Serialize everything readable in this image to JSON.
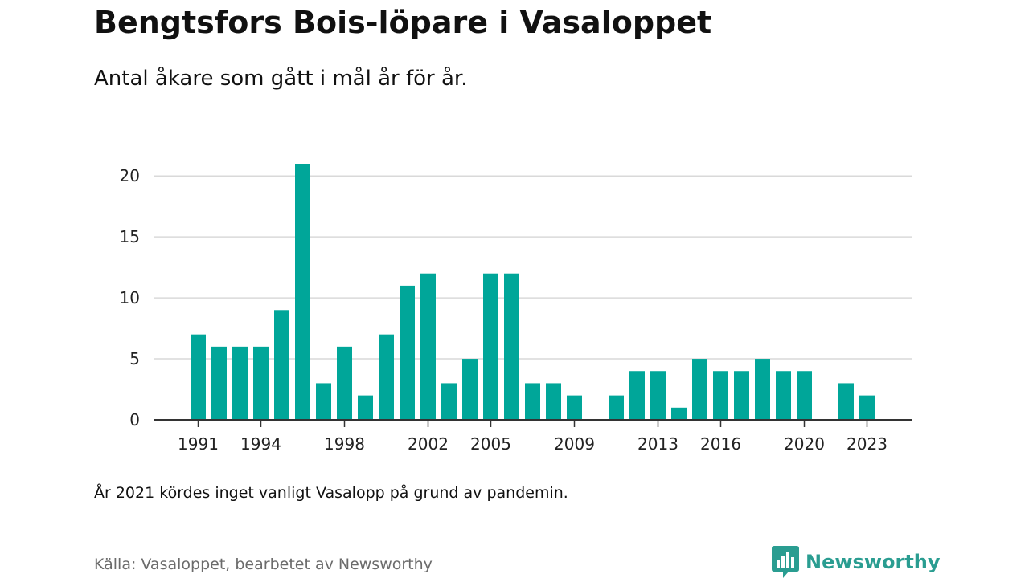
{
  "header": {
    "title": "Bengtsfors Bois-löpare i Vasaloppet",
    "subtitle": "Antal åkare som gått i mål år för år."
  },
  "footer": {
    "note": "År 2021 kördes inget vanligt Vasalopp på grund av pandemin.",
    "source": "Källa: Vasaloppet, bearbetet av Newsworthy",
    "brand": "Newsworthy"
  },
  "colors": {
    "bar": "#00a699",
    "brand": "#2a9d91",
    "grid": "#d9d9d9",
    "axis": "#333333"
  },
  "icons": {
    "brand_logo": "newsworthy-logo-icon"
  },
  "chart_data": {
    "type": "bar",
    "categories": [
      1991,
      1992,
      1993,
      1994,
      1995,
      1996,
      1997,
      1998,
      1999,
      2000,
      2001,
      2002,
      2003,
      2004,
      2005,
      2006,
      2007,
      2008,
      2009,
      2010,
      2011,
      2012,
      2013,
      2014,
      2015,
      2016,
      2017,
      2018,
      2019,
      2020,
      2021,
      2022,
      2023
    ],
    "values": [
      7,
      6,
      6,
      6,
      9,
      21,
      3,
      6,
      2,
      7,
      11,
      12,
      3,
      5,
      12,
      12,
      3,
      3,
      2,
      0,
      2,
      4,
      4,
      1,
      5,
      4,
      4,
      5,
      4,
      4,
      0,
      3,
      2
    ],
    "x_tick_labels": [
      "1991",
      "1994",
      "1998",
      "2002",
      "2005",
      "2009",
      "2013",
      "2016",
      "2020",
      "2023"
    ],
    "y_tick_labels": [
      "0",
      "5",
      "10",
      "15",
      "20"
    ],
    "ylim": [
      0,
      21
    ],
    "grid": true,
    "legend": "none"
  }
}
